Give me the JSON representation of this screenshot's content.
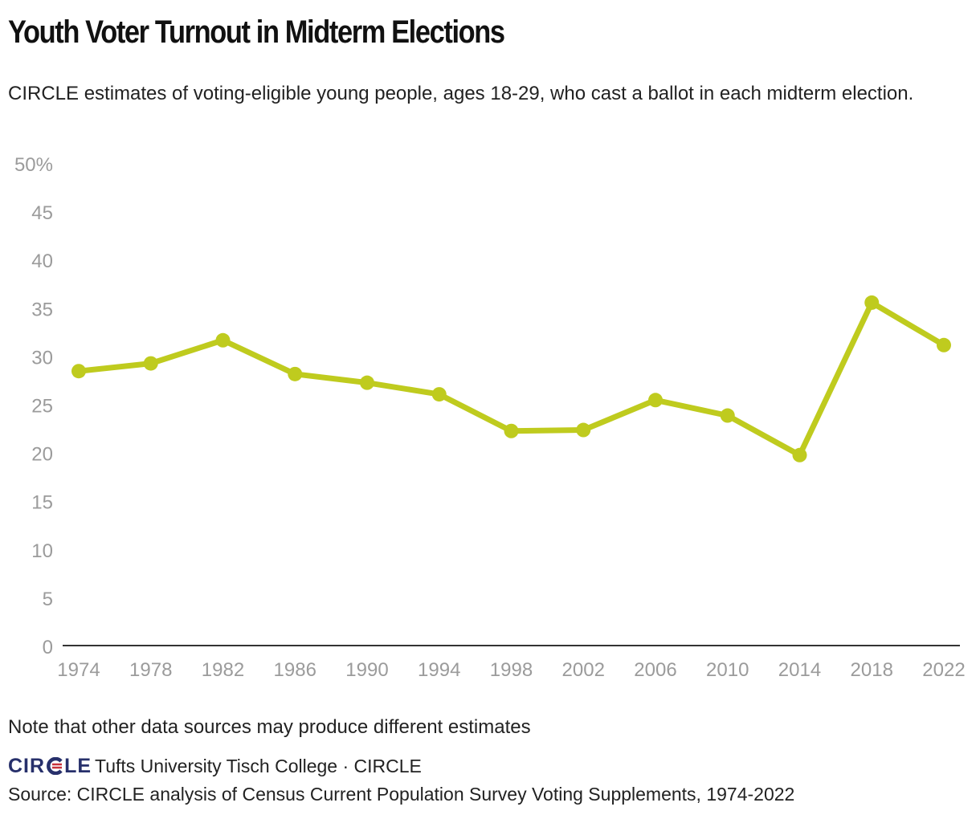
{
  "title": "Youth Voter Turnout in Midterm Elections",
  "subtitle": "CIRCLE estimates of voting-eligible young people, ages 18-29, who cast a ballot in each midterm election.",
  "note": "Note that other data sources may produce different estimates",
  "credit": {
    "logo_left": "CIR",
    "logo_right": "LE",
    "text": "Tufts University Tisch College · CIRCLE",
    "logo_color": "#27306b",
    "logo_accent": "#c8313a"
  },
  "source": "Source: CIRCLE analysis of Census Current Population Survey Voting Supplements, 1974-2022",
  "chart_data": {
    "type": "line",
    "x": [
      "1974",
      "1978",
      "1982",
      "1986",
      "1990",
      "1994",
      "1998",
      "2002",
      "2006",
      "2010",
      "2014",
      "2018",
      "2022"
    ],
    "series": [
      {
        "values": [
          28.6,
          29.4,
          31.8,
          28.3,
          27.4,
          26.2,
          22.4,
          22.5,
          25.6,
          24.0,
          19.9,
          35.7,
          31.3
        ],
        "color": "#bfcb1e"
      }
    ],
    "y_ticks": [
      "0",
      "5",
      "10",
      "15",
      "20",
      "25",
      "30",
      "35",
      "40",
      "45",
      "50%"
    ],
    "ylim": [
      0,
      50
    ],
    "grid": false,
    "legend": "none"
  }
}
